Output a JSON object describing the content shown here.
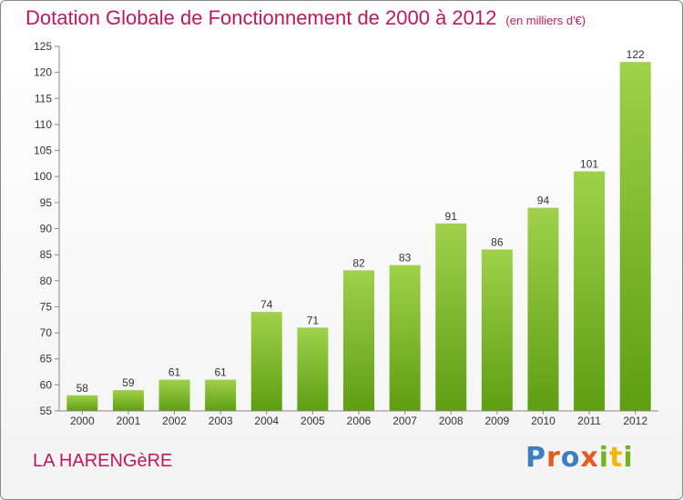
{
  "header": {
    "title": "Dotation Globale de Fonctionnement de 2000 à 2012",
    "unit": "(en milliers d'€)"
  },
  "footer": {
    "commune": "LA HARENGèRE",
    "logo": "Proxiti"
  },
  "colors": {
    "title": "#c2185b",
    "bar_top": "#9fd14a",
    "bar_bottom": "#5e9e12",
    "axis": "#888888",
    "text": "#333333"
  },
  "chart_data": {
    "type": "bar",
    "title": "Dotation Globale de Fonctionnement de 2000 à 2012",
    "subtitle": "(en milliers d'€)",
    "xlabel": "",
    "ylabel": "",
    "categories": [
      "2000",
      "2001",
      "2002",
      "2003",
      "2004",
      "2005",
      "2006",
      "2007",
      "2008",
      "2009",
      "2010",
      "2011",
      "2012"
    ],
    "values": [
      58,
      59,
      61,
      61,
      74,
      71,
      82,
      83,
      91,
      86,
      94,
      101,
      122
    ],
    "ylim": [
      55,
      125
    ],
    "yticks": [
      55,
      60,
      65,
      70,
      75,
      80,
      85,
      90,
      95,
      100,
      105,
      110,
      115,
      120,
      125
    ],
    "grid": false,
    "data_labels": true
  }
}
